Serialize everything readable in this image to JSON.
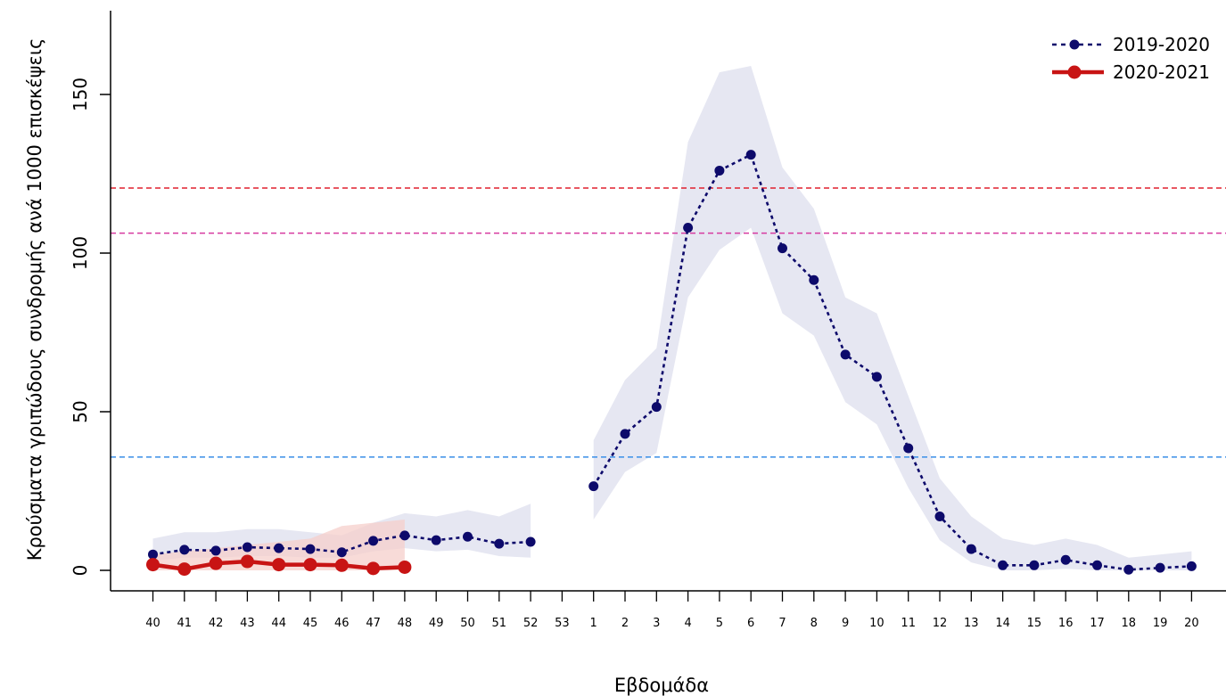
{
  "chart_data": {
    "type": "line",
    "xlabel": "Εβδομάδα",
    "ylabel": "Κρούσματα γριπώδους συνδρομής ανά 1000 επισκέψεις",
    "x_ticks": [
      "40",
      "41",
      "42",
      "43",
      "44",
      "45",
      "46",
      "47",
      "48",
      "49",
      "50",
      "51",
      "52",
      "53",
      "1",
      "2",
      "3",
      "4",
      "5",
      "6",
      "7",
      "8",
      "9",
      "10",
      "11",
      "12",
      "13",
      "14",
      "15",
      "16",
      "17",
      "18",
      "19",
      "20"
    ],
    "y_ticks": [
      0,
      50,
      100,
      150
    ],
    "ylim": [
      0,
      170
    ],
    "grid": false,
    "legend_position": "top-right",
    "series": [
      {
        "name": "2019-2020",
        "color": "#0d0a6b",
        "style": "dashed",
        "band_color": "#e6e7f2",
        "values": [
          5,
          6.5,
          6.2,
          7.3,
          7,
          6.7,
          5.7,
          9.3,
          11,
          9.5,
          10.6,
          8.4,
          9,
          null,
          26.5,
          43,
          51.5,
          108,
          126,
          131,
          101.5,
          91.5,
          68,
          61,
          38.5,
          17,
          6.7,
          1.6,
          1.6,
          3.3,
          1.6,
          0.2,
          0.8,
          1.3
        ],
        "lower": [
          3,
          4,
          4,
          4.5,
          4.5,
          4,
          4,
          6,
          7,
          6,
          6.5,
          4.5,
          4,
          null,
          16,
          31,
          37,
          86,
          101,
          108,
          81,
          74,
          53,
          46,
          26,
          9.5,
          2.5,
          0,
          0,
          0.5,
          0,
          0,
          0,
          0
        ],
        "upper": [
          10,
          12,
          12,
          13,
          13,
          12,
          11,
          15,
          18,
          17,
          19,
          17,
          21,
          null,
          41,
          60,
          70,
          135,
          157,
          159,
          127,
          114,
          86,
          81,
          55,
          29,
          17,
          10,
          8,
          10,
          8,
          4,
          5,
          6
        ]
      },
      {
        "name": "2020-2021",
        "color": "#c81414",
        "style": "solid",
        "band_color": "#f6cfcb",
        "values": [
          1.8,
          0.4,
          2.2,
          2.8,
          1.8,
          1.8,
          1.6,
          0.6,
          1.0
        ],
        "lower": [
          0,
          0,
          0,
          0,
          0,
          0,
          0,
          0,
          0
        ],
        "upper": [
          5,
          6,
          7,
          8,
          9,
          10,
          14,
          15,
          16
        ]
      }
    ],
    "thresholds": [
      {
        "value": 120.5,
        "color": "#e0202e"
      },
      {
        "value": 106.3,
        "color": "#d63aa0"
      },
      {
        "value": 35.7,
        "color": "#3a8fe8"
      }
    ]
  }
}
